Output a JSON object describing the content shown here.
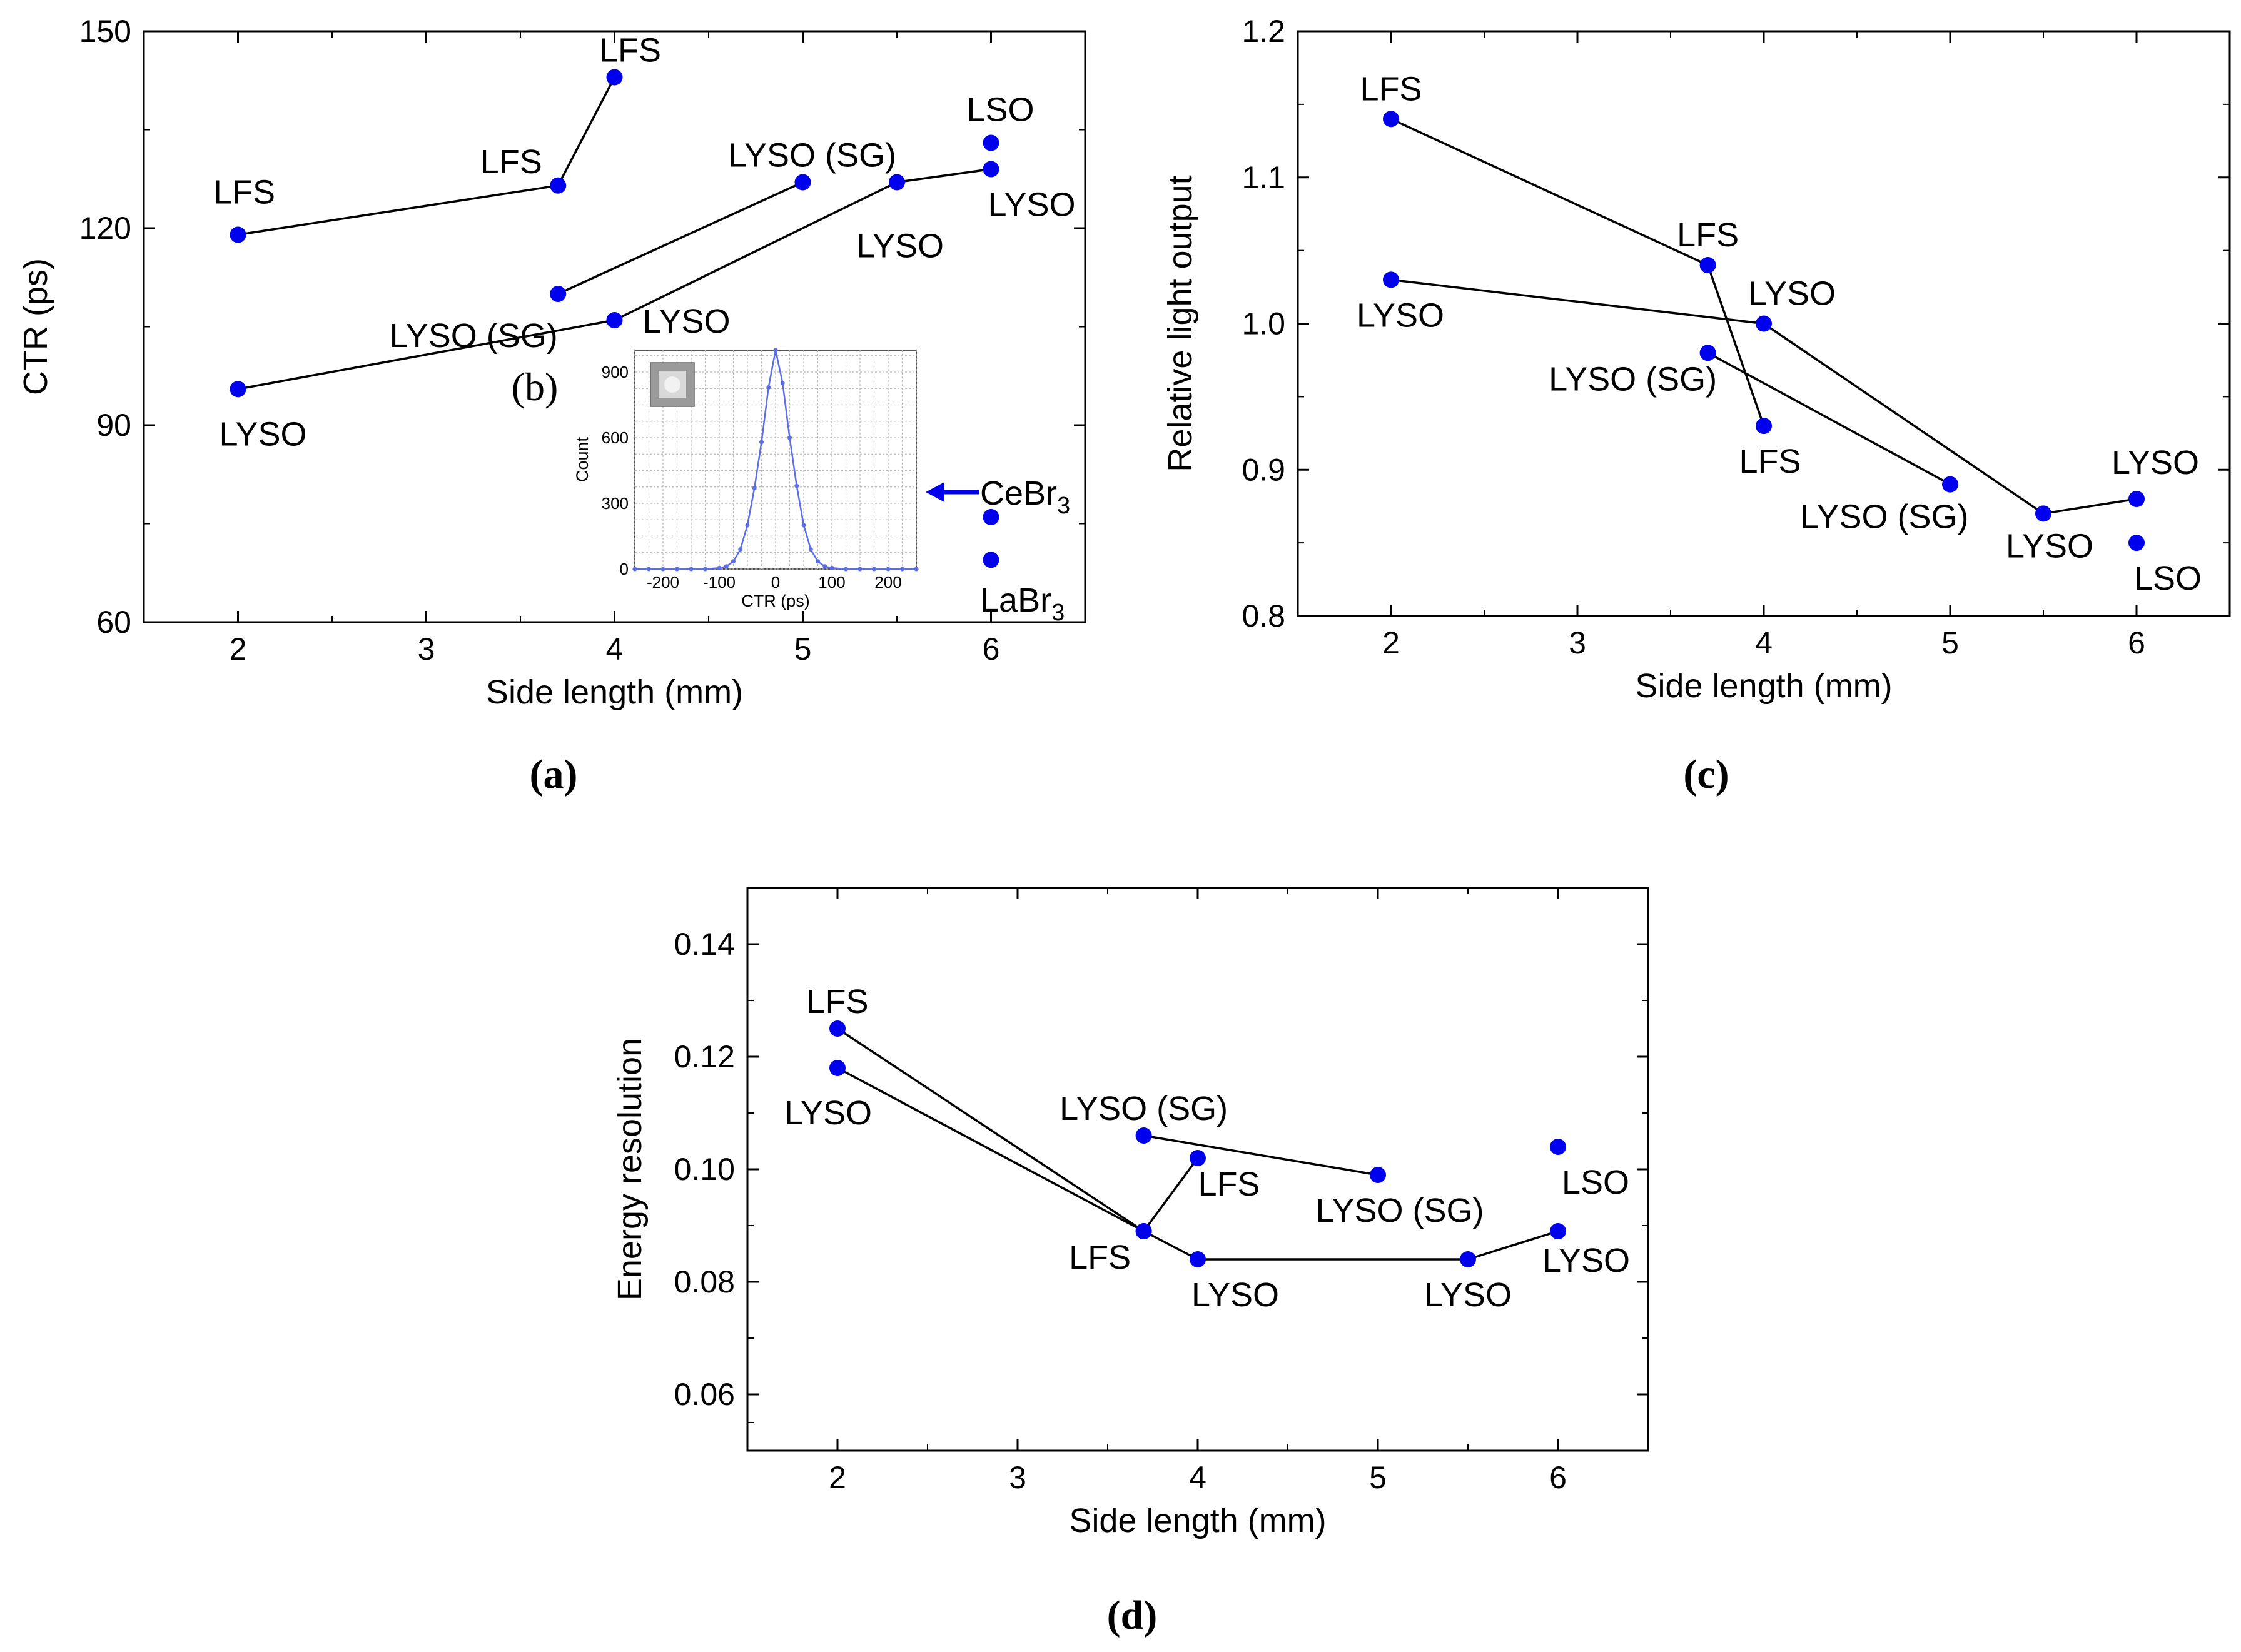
{
  "chart_data": [
    {
      "id": "a",
      "type": "scatter",
      "caption": "(a)",
      "xlabel": "Side length (mm)",
      "ylabel": "CTR (ps)",
      "xlim": [
        1.5,
        6.5
      ],
      "ylim": [
        60,
        150
      ],
      "xticks": [
        2,
        3,
        4,
        5,
        6
      ],
      "yticks": [
        60,
        90,
        120,
        150
      ],
      "series": [
        {
          "name": "LFS",
          "points": [
            [
              2,
              119,
              "LFS"
            ],
            [
              3.7,
              126.5,
              "LFS"
            ],
            [
              4,
              143,
              "LFS"
            ]
          ]
        },
        {
          "name": "LYSO (SG)",
          "points": [
            [
              3.7,
              110,
              "LYSO (SG)"
            ],
            [
              5,
              127,
              "LYSO (SG)"
            ]
          ]
        },
        {
          "name": "LYSO",
          "points": [
            [
              2,
              95.5,
              "LYSO"
            ],
            [
              4,
              106,
              "LYSO"
            ],
            [
              5.5,
              127,
              "LYSO"
            ],
            [
              6,
              129,
              "LYSO"
            ]
          ]
        },
        {
          "name": "LSO",
          "points": [
            [
              6,
              133,
              "LSO"
            ]
          ]
        },
        {
          "name": "CeBr3",
          "points": [
            [
              6,
              76,
              ""
            ]
          ]
        },
        {
          "name": "LaBr3",
          "points": [
            [
              6,
              69.5,
              ""
            ]
          ]
        }
      ],
      "annotations": {
        "cebr_label": "CeBr",
        "cebr_sub": "3",
        "labr_label": "LaBr",
        "labr_sub": "3",
        "inset_tag": "(b)"
      },
      "inset": {
        "type": "line",
        "xlabel": "CTR (ps)",
        "ylabel": "Count",
        "xlim": [
          -250,
          250
        ],
        "ylim": [
          0,
          1000
        ],
        "xticks": [
          -200,
          -100,
          0,
          100,
          200
        ],
        "yticks": [
          0,
          300,
          600,
          900
        ],
        "x": [
          -250,
          -225,
          -200,
          -175,
          -150,
          -125,
          -100,
          -87.5,
          -75,
          -62.5,
          -50,
          -37.5,
          -25,
          -12.5,
          0,
          12.5,
          25,
          37.5,
          50,
          62.5,
          75,
          87.5,
          100,
          125,
          150,
          175,
          200,
          225,
          250
        ],
        "y": [
          0,
          0,
          0,
          0,
          0,
          0,
          5,
          12,
          35,
          90,
          200,
          370,
          580,
          830,
          1000,
          850,
          600,
          380,
          200,
          90,
          35,
          12,
          5,
          0,
          0,
          0,
          0,
          0,
          0
        ]
      }
    },
    {
      "id": "c",
      "type": "scatter",
      "caption": "(c)",
      "xlabel": "Side length (mm)",
      "ylabel": "Relative light output",
      "xlim": [
        1.5,
        6.5
      ],
      "ylim": [
        0.8,
        1.2
      ],
      "xticks": [
        2,
        3,
        4,
        5,
        6
      ],
      "yticks": [
        "0.8",
        "0.9",
        "1.0",
        "1.1",
        "1.2"
      ],
      "series": [
        {
          "name": "LFS",
          "points": [
            [
              2,
              1.14,
              "LFS"
            ],
            [
              3.7,
              1.04,
              "LFS"
            ],
            [
              4,
              0.93,
              "LFS"
            ]
          ]
        },
        {
          "name": "LYSO",
          "points": [
            [
              2,
              1.03,
              "LYSO"
            ],
            [
              4,
              1.0,
              "LYSO"
            ],
            [
              5.5,
              0.87,
              "LYSO"
            ],
            [
              6,
              0.88,
              "LYSO"
            ]
          ]
        },
        {
          "name": "LYSO (SG)",
          "points": [
            [
              3.7,
              0.98,
              "LYSO (SG)"
            ],
            [
              5,
              0.89,
              "LYSO (SG)"
            ]
          ]
        },
        {
          "name": "LSO",
          "points": [
            [
              6,
              0.85,
              "LSO"
            ]
          ]
        }
      ]
    },
    {
      "id": "d",
      "type": "scatter",
      "caption": "(d)",
      "xlabel": "Side length (mm)",
      "ylabel": "Energy resolution",
      "xlim": [
        1.5,
        6.5
      ],
      "ylim": [
        0.05,
        0.15
      ],
      "xticks": [
        2,
        3,
        4,
        5,
        6
      ],
      "yticks": [
        "0.06",
        "0.08",
        "0.10",
        "0.12",
        "0.14"
      ],
      "series": [
        {
          "name": "LFS",
          "points": [
            [
              2,
              0.125,
              "LFS"
            ],
            [
              3.7,
              0.089,
              "LFS"
            ],
            [
              4,
              0.102,
              "LFS"
            ]
          ]
        },
        {
          "name": "LYSO",
          "points": [
            [
              2,
              0.118,
              "LYSO"
            ],
            [
              3.7,
              0.089,
              ""
            ],
            [
              4,
              0.084,
              "LYSO"
            ],
            [
              5.5,
              0.084,
              "LYSO"
            ],
            [
              6,
              0.089,
              "LYSO"
            ]
          ]
        },
        {
          "name": "LYSO (SG)",
          "points": [
            [
              3.7,
              0.106,
              "LYSO (SG)"
            ],
            [
              5,
              0.099,
              "LYSO (SG)"
            ]
          ]
        },
        {
          "name": "LSO",
          "points": [
            [
              6,
              0.104,
              "LSO"
            ]
          ]
        }
      ]
    }
  ],
  "colors": {
    "point": "#0000ee",
    "line": "#000000",
    "inset_line": "#5b6ee8",
    "inset_grid": "#b8b8b8"
  }
}
